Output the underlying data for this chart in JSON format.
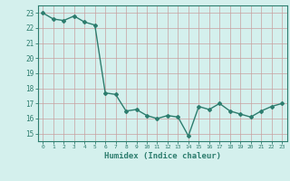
{
  "x": [
    0,
    1,
    2,
    3,
    4,
    5,
    6,
    7,
    8,
    9,
    10,
    11,
    12,
    13,
    14,
    15,
    16,
    17,
    18,
    19,
    20,
    21,
    22,
    23
  ],
  "y": [
    23.0,
    22.6,
    22.5,
    22.8,
    22.4,
    22.2,
    17.7,
    17.6,
    16.5,
    16.6,
    16.2,
    16.0,
    16.2,
    16.1,
    14.85,
    16.8,
    16.6,
    17.0,
    16.5,
    16.3,
    16.1,
    16.5,
    16.8,
    17.0
  ],
  "xlabel": "Humidex (Indice chaleur)",
  "ylim": [
    14.5,
    23.5
  ],
  "xlim": [
    -0.5,
    23.5
  ],
  "yticks": [
    15,
    16,
    17,
    18,
    19,
    20,
    21,
    22,
    23
  ],
  "xticks": [
    0,
    1,
    2,
    3,
    4,
    5,
    6,
    7,
    8,
    9,
    10,
    11,
    12,
    13,
    14,
    15,
    16,
    17,
    18,
    19,
    20,
    21,
    22,
    23
  ],
  "line_color": "#2d7d6e",
  "marker": "D",
  "marker_size": 2.0,
  "bg_color": "#d4f0ed",
  "grid_color": "#c8a0a0",
  "axis_color": "#2d7d6e",
  "tick_label_color": "#2d7d6e",
  "xlabel_color": "#2d7d6e",
  "line_width": 1.0
}
